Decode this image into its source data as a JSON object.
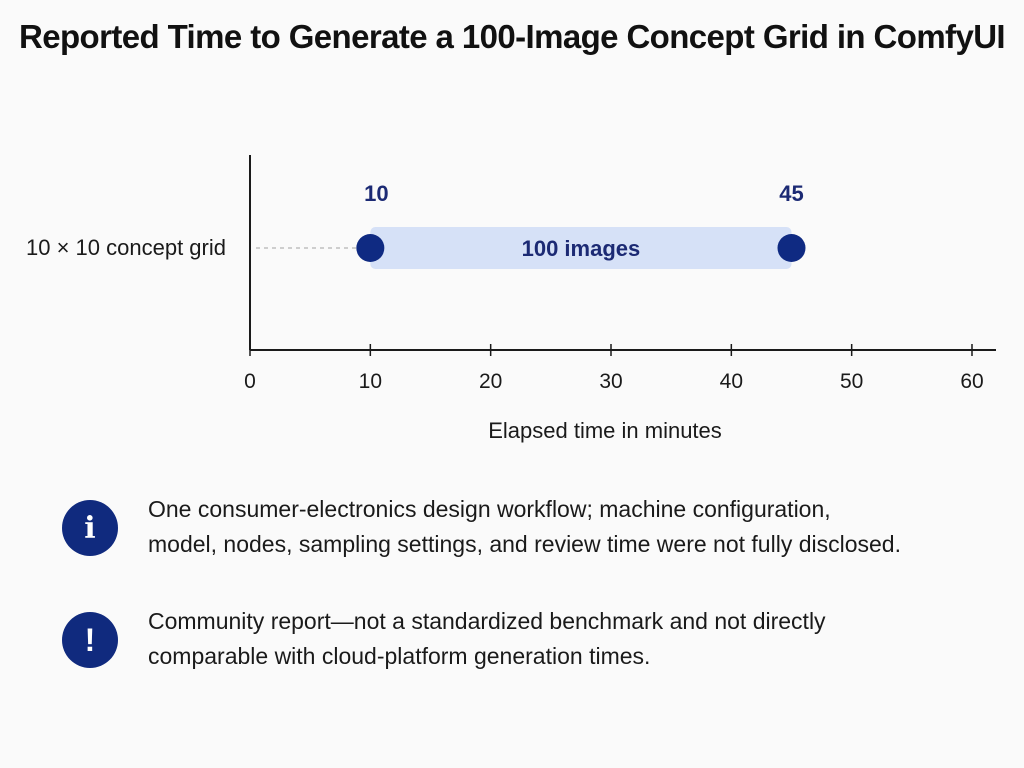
{
  "title": "Reported Time to Generate a 100-Image Concept Grid in ComfyUI",
  "chart_data": {
    "type": "range-bar",
    "categories": [
      "10 × 10 concept grid"
    ],
    "ranges": [
      {
        "category": "10 × 10 concept grid",
        "start": 10,
        "end": 45,
        "label": "100 images"
      }
    ],
    "xlabel": "Elapsed time in minutes",
    "ylabel": "",
    "xlim": [
      0,
      60
    ],
    "xticks": [
      0,
      10,
      20,
      30,
      40,
      50,
      60
    ],
    "grid": false,
    "colors": {
      "endpoint": "#0f2a82",
      "bar": "#d6e1f7",
      "value_label": "#1c2a74",
      "axis": "#1a1a1a"
    }
  },
  "notes": [
    {
      "icon": "info-icon",
      "glyph": "i",
      "text_line1": "One consumer-electronics design workflow; machine configuration,",
      "text_line2": "model, nodes, sampling settings, and review time were not fully disclosed."
    },
    {
      "icon": "warning-icon",
      "glyph": "!",
      "text_line1": "Community report—not a standardized benchmark and not directly",
      "text_line2": "comparable with cloud-platform generation times."
    }
  ]
}
